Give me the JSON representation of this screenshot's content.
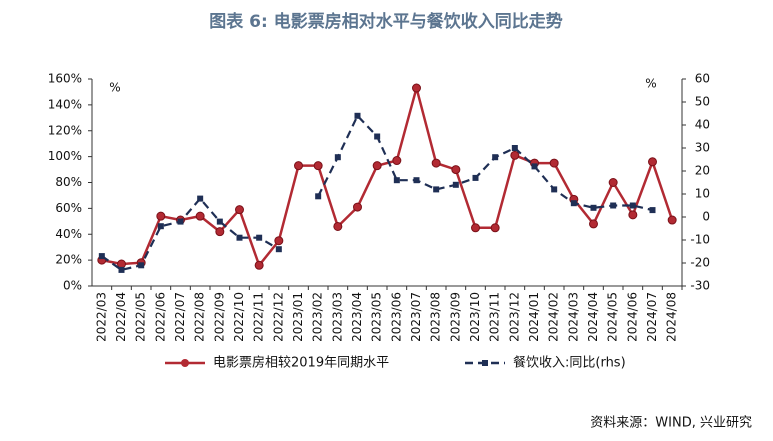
{
  "chart_data": {
    "type": "line",
    "title": "图表 6:  电影票房相对水平与餐饮收入同比走势",
    "y_unit_label": "%",
    "y2_unit_label": "%",
    "source": "资料来源：WIND, 兴业研究",
    "categories": [
      "2022/03",
      "2022/04",
      "2022/05",
      "2022/06",
      "2022/07",
      "2022/08",
      "2022/09",
      "2022/10",
      "2022/11",
      "2022/12",
      "2023/01",
      "2023/02",
      "2023/03",
      "2023/04",
      "2023/05",
      "2023/06",
      "2023/07",
      "2023/08",
      "2023/09",
      "2023/10",
      "2023/11",
      "2023/12",
      "2024/01",
      "2024/02",
      "2024/03",
      "2024/04",
      "2024/05",
      "2024/06",
      "2024/07",
      "2024/08"
    ],
    "series": [
      {
        "name": "电影票房相较2019年同期水平",
        "color": "#b22a33",
        "axis": "y",
        "dash": false,
        "values": [
          20,
          17,
          18,
          54,
          51,
          54,
          42,
          59,
          16,
          35,
          93,
          93,
          46,
          61,
          93,
          97,
          153,
          95,
          90,
          45,
          45,
          101,
          95,
          95,
          67,
          48,
          80,
          55,
          96,
          51
        ]
      },
      {
        "name": "餐饮收入:同比(rhs)",
        "color": "#1f2f55",
        "axis": "y2",
        "dash": true,
        "values": [
          -17,
          -23,
          -21,
          -4,
          -2,
          8,
          -2,
          -9,
          -9,
          -14,
          null,
          9,
          26,
          44,
          35,
          16,
          16,
          12,
          14,
          17,
          26,
          30,
          22,
          12,
          6,
          4,
          5,
          5,
          3,
          null
        ]
      }
    ],
    "ylim": [
      0,
      160
    ],
    "yticks": [
      {
        "value": 0,
        "label": "0%"
      },
      {
        "value": 20,
        "label": "20%"
      },
      {
        "value": 40,
        "label": "40%"
      },
      {
        "value": 60,
        "label": "60%"
      },
      {
        "value": 80,
        "label": "80%"
      },
      {
        "value": 100,
        "label": "100%"
      },
      {
        "value": 120,
        "label": "120%"
      },
      {
        "value": 140,
        "label": "140%"
      },
      {
        "value": 160,
        "label": "160%"
      }
    ],
    "y2lim": [
      -30,
      60
    ],
    "y2ticks": [
      -30,
      -20,
      -10,
      0,
      10,
      20,
      30,
      40,
      50,
      60
    ],
    "legend": "bottom"
  }
}
